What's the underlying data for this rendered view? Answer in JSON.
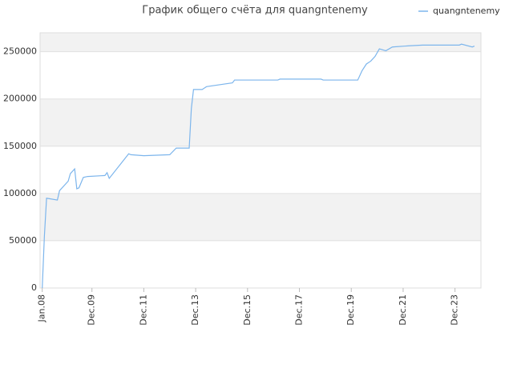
{
  "chart_data": {
    "type": "line",
    "title": "График общего счёта для quangntenemy",
    "x": [
      "2008-01",
      "2008-02",
      "2008-03",
      "2008-08",
      "2008-09",
      "2009-01",
      "2009-02",
      "2009-04",
      "2009-05",
      "2009-06",
      "2009-08",
      "2009-10",
      "2010-06",
      "2010-07",
      "2010-08",
      "2011-05",
      "2011-06",
      "2011-12",
      "2012-12",
      "2013-03",
      "2013-09",
      "2013-10",
      "2013-11",
      "2014-03",
      "2014-05",
      "2015-05",
      "2015-06",
      "2017-02",
      "2017-03",
      "2018-10",
      "2018-11",
      "2020-03",
      "2020-05",
      "2020-07",
      "2020-09",
      "2020-11",
      "2021-01",
      "2021-04",
      "2021-07",
      "2022-01",
      "2022-09",
      "2024-02",
      "2024-03",
      "2024-08",
      "2024-09"
    ],
    "series": [
      {
        "name": "quangntenemy",
        "color": "#7cb5ec",
        "values": [
          0,
          55000,
          95000,
          93000,
          103000,
          113000,
          121000,
          126000,
          105000,
          106000,
          117000,
          118000,
          119000,
          122000,
          116000,
          142000,
          141000,
          140000,
          141000,
          148000,
          148000,
          190000,
          210000,
          210000,
          213000,
          217000,
          220000,
          220000,
          221000,
          221000,
          220000,
          220000,
          230000,
          237000,
          240000,
          245000,
          253000,
          251000,
          255000,
          256000,
          257000,
          257000,
          258000,
          255000,
          256000
        ]
      }
    ],
    "xlim": [
      "2007-12",
      "2024-12"
    ],
    "xticks": [
      {
        "value": "2008-01",
        "label": "Jan.08"
      },
      {
        "value": "2009-12",
        "label": "Dec.09"
      },
      {
        "value": "2011-12",
        "label": "Dec.11"
      },
      {
        "value": "2013-12",
        "label": "Dec.13"
      },
      {
        "value": "2015-12",
        "label": "Dec.15"
      },
      {
        "value": "2017-12",
        "label": "Dec.17"
      },
      {
        "value": "2019-12",
        "label": "Dec.19"
      },
      {
        "value": "2021-12",
        "label": "Dec.21"
      },
      {
        "value": "2023-12",
        "label": "Dec.23"
      }
    ],
    "ylim": [
      0,
      270000
    ],
    "yticks": [
      0,
      50000,
      100000,
      150000,
      200000,
      250000
    ],
    "grid": true,
    "legend": "top-right"
  }
}
